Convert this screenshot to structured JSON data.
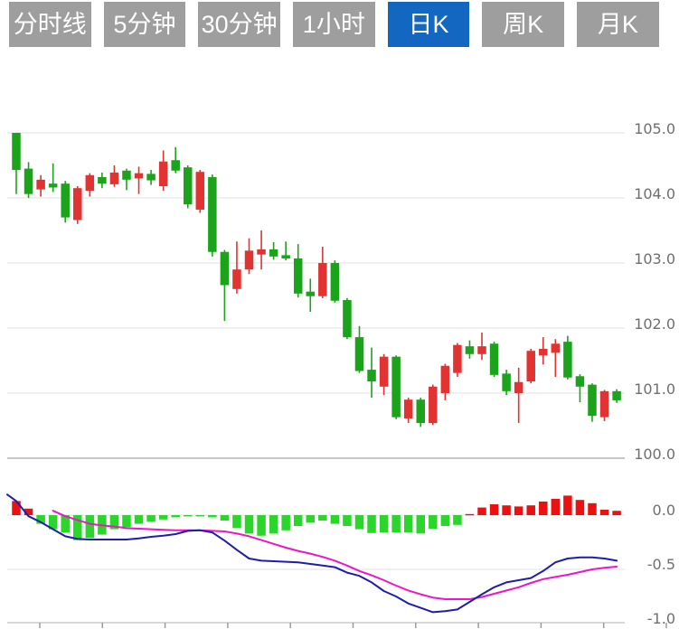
{
  "toolbar": {
    "tabs": [
      {
        "label": "分时线",
        "active": false
      },
      {
        "label": "5分钟",
        "active": false
      },
      {
        "label": "30分钟",
        "active": false
      },
      {
        "label": "1小时",
        "active": false
      },
      {
        "label": "日K",
        "active": true
      },
      {
        "label": "周K",
        "active": false
      },
      {
        "label": "月K",
        "active": false
      }
    ],
    "active_color": "#1467c0",
    "inactive_color": "#9e9e9e"
  },
  "chart_data": {
    "type": "candlestick_with_macd",
    "title": "",
    "legend_position": "none",
    "grid": true,
    "price_axis": {
      "side": "right",
      "ticks": [
        "105.0",
        "104.0",
        "103.0",
        "102.0",
        "101.0",
        "100.0"
      ],
      "values": [
        105.0,
        104.0,
        103.0,
        102.0,
        101.0,
        100.0
      ],
      "range": [
        100.0,
        105.0
      ]
    },
    "macd_axis": {
      "side": "right",
      "ticks": [
        "0.0",
        "-0.5",
        "-1.0"
      ],
      "values": [
        0.0,
        -0.5,
        -1.0
      ],
      "range": [
        -1.0,
        0.2
      ]
    },
    "candles_ohlc": [
      [
        105.0,
        105.0,
        104.06,
        104.43
      ],
      [
        104.45,
        104.55,
        104.0,
        104.06
      ],
      [
        104.13,
        104.35,
        104.02,
        104.28
      ],
      [
        104.22,
        104.53,
        104.09,
        104.16
      ],
      [
        104.22,
        104.26,
        103.62,
        103.7
      ],
      [
        103.66,
        104.18,
        103.6,
        104.15
      ],
      [
        104.11,
        104.38,
        104.02,
        104.35
      ],
      [
        104.32,
        104.39,
        104.15,
        104.22
      ],
      [
        104.21,
        104.5,
        104.17,
        104.39
      ],
      [
        104.42,
        104.45,
        104.12,
        104.28
      ],
      [
        104.3,
        104.48,
        104.06,
        104.38
      ],
      [
        104.37,
        104.43,
        104.2,
        104.27
      ],
      [
        104.18,
        104.73,
        104.11,
        104.56
      ],
      [
        104.58,
        104.78,
        104.38,
        104.42
      ],
      [
        104.47,
        104.5,
        103.84,
        103.9
      ],
      [
        103.82,
        104.43,
        103.77,
        104.4
      ],
      [
        104.32,
        104.36,
        103.1,
        103.17
      ],
      [
        103.17,
        103.2,
        102.11,
        102.66
      ],
      [
        102.6,
        103.33,
        102.53,
        102.9
      ],
      [
        102.9,
        103.38,
        102.83,
        103.19
      ],
      [
        103.13,
        103.5,
        102.9,
        103.21
      ],
      [
        103.21,
        103.32,
        103.05,
        103.1
      ],
      [
        103.12,
        103.33,
        103.04,
        103.07
      ],
      [
        103.07,
        103.29,
        102.47,
        102.53
      ],
      [
        102.56,
        102.76,
        102.25,
        102.49
      ],
      [
        102.49,
        103.25,
        102.46,
        103.0
      ],
      [
        103.0,
        103.04,
        102.39,
        102.42
      ],
      [
        102.43,
        102.46,
        101.83,
        101.86
      ],
      [
        101.86,
        102.03,
        101.31,
        101.34
      ],
      [
        101.36,
        101.7,
        100.93,
        101.18
      ],
      [
        101.1,
        101.6,
        100.97,
        101.56
      ],
      [
        101.56,
        101.58,
        100.6,
        100.63
      ],
      [
        100.61,
        100.93,
        100.54,
        100.9
      ],
      [
        100.9,
        100.93,
        100.48,
        100.54
      ],
      [
        100.54,
        101.13,
        100.51,
        101.1
      ],
      [
        101.0,
        101.45,
        100.89,
        101.42
      ],
      [
        101.31,
        101.77,
        101.25,
        101.74
      ],
      [
        101.72,
        101.81,
        101.53,
        101.6
      ],
      [
        101.6,
        101.93,
        101.51,
        101.72
      ],
      [
        101.76,
        101.79,
        101.25,
        101.28
      ],
      [
        101.3,
        101.36,
        100.97,
        101.03
      ],
      [
        101.0,
        101.39,
        100.54,
        101.17
      ],
      [
        101.18,
        101.68,
        101.15,
        101.65
      ],
      [
        101.58,
        101.86,
        101.44,
        101.68
      ],
      [
        101.62,
        101.83,
        101.25,
        101.76
      ],
      [
        101.79,
        101.88,
        101.21,
        101.24
      ],
      [
        101.26,
        101.29,
        100.86,
        101.1
      ],
      [
        101.13,
        101.15,
        100.56,
        100.65
      ],
      [
        100.63,
        101.05,
        100.57,
        101.03
      ],
      [
        101.03,
        101.06,
        100.85,
        100.89
      ]
    ],
    "macd": {
      "histogram": [
        0.13,
        0.06,
        -0.08,
        -0.13,
        -0.16,
        -0.23,
        -0.21,
        -0.18,
        -0.13,
        -0.11,
        -0.08,
        -0.06,
        -0.04,
        -0.02,
        -0.01,
        -0.01,
        -0.02,
        -0.05,
        -0.12,
        -0.17,
        -0.19,
        -0.17,
        -0.14,
        -0.1,
        -0.07,
        -0.05,
        -0.08,
        -0.1,
        -0.13,
        -0.165,
        -0.16,
        -0.16,
        -0.16,
        -0.17,
        -0.125,
        -0.1,
        -0.09,
        0.01,
        0.07,
        0.1,
        0.09,
        0.08,
        0.09,
        0.125,
        0.15,
        0.18,
        0.14,
        0.11,
        0.05,
        0.04
      ],
      "dif": [
        0.13,
        -0.01,
        -0.065,
        -0.13,
        -0.195,
        -0.22,
        -0.225,
        -0.225,
        -0.225,
        -0.225,
        -0.215,
        -0.2,
        -0.19,
        -0.175,
        -0.145,
        -0.14,
        -0.16,
        -0.235,
        -0.32,
        -0.4,
        -0.42,
        -0.425,
        -0.43,
        -0.435,
        -0.45,
        -0.465,
        -0.48,
        -0.53,
        -0.56,
        -0.62,
        -0.7,
        -0.75,
        -0.815,
        -0.855,
        -0.895,
        -0.885,
        -0.87,
        -0.8,
        -0.73,
        -0.665,
        -0.62,
        -0.6,
        -0.58,
        -0.515,
        -0.435,
        -0.4,
        -0.39,
        -0.39,
        -0.4,
        -0.42
      ],
      "dif_lead_value": 0.19,
      "dea": [
        null,
        null,
        null,
        0.04,
        -0.01,
        -0.045,
        -0.08,
        -0.095,
        -0.105,
        -0.12,
        -0.125,
        -0.13,
        -0.135,
        -0.14,
        -0.14,
        -0.14,
        -0.145,
        -0.15,
        -0.17,
        -0.195,
        -0.23,
        -0.265,
        -0.3,
        -0.33,
        -0.355,
        -0.385,
        -0.42,
        -0.465,
        -0.515,
        -0.555,
        -0.6,
        -0.65,
        -0.695,
        -0.73,
        -0.76,
        -0.775,
        -0.775,
        -0.775,
        -0.755,
        -0.725,
        -0.695,
        -0.665,
        -0.625,
        -0.59,
        -0.57,
        -0.55,
        -0.525,
        -0.5,
        -0.485,
        -0.475
      ]
    },
    "colors": {
      "candle_up": "#e23333",
      "candle_down": "#1ca31c",
      "hist_up": "#ec1111",
      "hist_down": "#2cd52c",
      "dif_line": "#1d1daf",
      "dea_line": "#ef14ca",
      "grid_light": "#e6e6e6",
      "grid_separator": "#c6c6c6",
      "axis_line": "#cccccc",
      "axis_tick": "#9a9a9a",
      "label": "#6f6f6f"
    }
  }
}
